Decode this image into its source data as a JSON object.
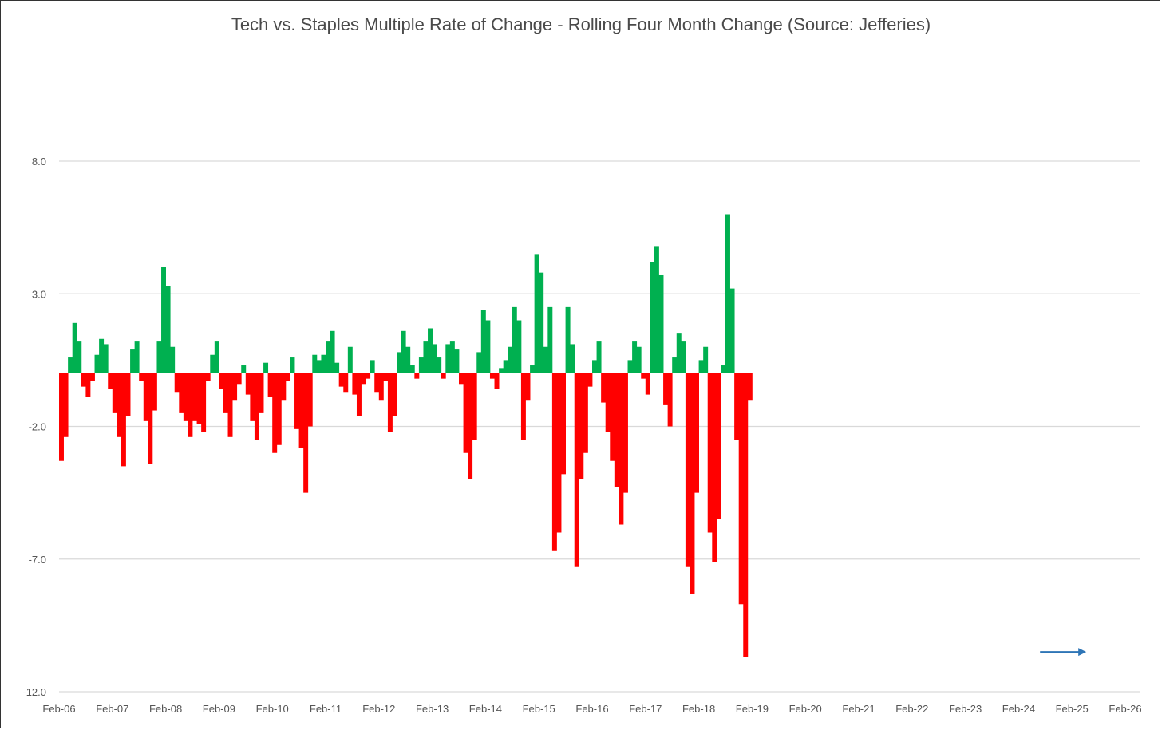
{
  "chart_data": {
    "type": "bar",
    "title": "Tech vs. Staples Multiple Rate of Change - Rolling Four Month Change (Source: Jefferies)",
    "xlabel": "",
    "ylabel": "",
    "ylim": [
      -12,
      12
    ],
    "y_ticks": [
      "8.0",
      "3.0",
      "-2.0",
      "-7.0",
      "-12.0"
    ],
    "y_tick_values": [
      8,
      3,
      -2,
      -7,
      -12
    ],
    "x_ticks": [
      "Feb-06",
      "Feb-07",
      "Feb-08",
      "Feb-09",
      "Feb-10",
      "Feb-11",
      "Feb-12",
      "Feb-13",
      "Feb-14",
      "Feb-15",
      "Feb-16",
      "Feb-17",
      "Feb-18",
      "Feb-19",
      "Feb-20",
      "Feb-21",
      "Feb-22",
      "Feb-23",
      "Feb-24",
      "Feb-25",
      "Feb-26"
    ],
    "grid": true,
    "colors": {
      "positive": "#00b050",
      "negative": "#ff0000",
      "grid": "#d9d9d9",
      "arrow": "#2e75b6"
    },
    "series": [
      {
        "x_start": "Feb-06",
        "step_months": 1,
        "values": [
          -3.3,
          -2.4,
          0.6,
          1.9,
          1.2,
          -0.5,
          -0.9,
          -0.3,
          0.7,
          1.3,
          1.1,
          -0.6,
          -1.5,
          -2.4,
          -3.5,
          -1.6,
          0.9,
          1.2,
          -0.3,
          -1.8,
          -3.4,
          -1.4,
          1.2,
          4.0,
          3.3,
          1.0,
          -0.7,
          -1.5,
          -1.8,
          -2.4,
          -1.8,
          -1.9,
          -2.2,
          -0.3,
          0.7,
          1.2,
          -0.6,
          -1.5,
          -2.4,
          -1.0,
          -0.4,
          0.3,
          -0.8,
          -1.8,
          -2.5,
          -1.5,
          0.4,
          -0.9,
          -3.0,
          -2.7,
          -1.0,
          -0.3,
          0.6,
          -2.1,
          -2.8,
          -4.5,
          -2.0,
          0.7,
          0.5,
          0.7,
          1.2,
          1.6,
          0.4,
          -0.5,
          -0.7,
          1.0,
          -0.8,
          -1.6,
          -0.4,
          -0.2,
          0.5,
          -0.7,
          -1.0,
          -0.3,
          -2.2,
          -1.6,
          0.8,
          1.6,
          1.0,
          0.3,
          -0.2,
          0.6,
          1.2,
          1.7,
          1.1,
          0.6,
          -0.2,
          1.1,
          1.2,
          0.9,
          -0.4,
          -3.0,
          -4.0,
          -2.5,
          0.8,
          2.4,
          2.0,
          -0.2,
          -0.6,
          0.2,
          0.5,
          1.0,
          2.5,
          2.0,
          -2.5,
          -1.0,
          0.3,
          4.5,
          3.8,
          1.0,
          2.5,
          -6.7,
          -6.0,
          -3.8,
          2.5,
          1.1,
          -7.3,
          -4.0,
          -3.0,
          -0.5,
          0.5,
          1.2,
          -1.1,
          -2.2,
          -3.3,
          -4.3,
          -5.7,
          -4.5,
          0.5,
          1.2,
          1.0,
          -0.2,
          -0.8,
          4.2,
          4.8,
          3.7,
          -1.2,
          -2.0,
          0.6,
          1.5,
          1.2,
          -7.3,
          -8.3,
          -4.5,
          0.5,
          1.0,
          -6.0,
          -7.1,
          -5.5,
          0.3,
          6.0,
          3.2,
          -2.5,
          -8.7,
          -10.7,
          -1.0
        ]
      }
    ],
    "annotations": [
      {
        "type": "arrow",
        "x": "Feb-25",
        "direction": "right"
      }
    ]
  }
}
